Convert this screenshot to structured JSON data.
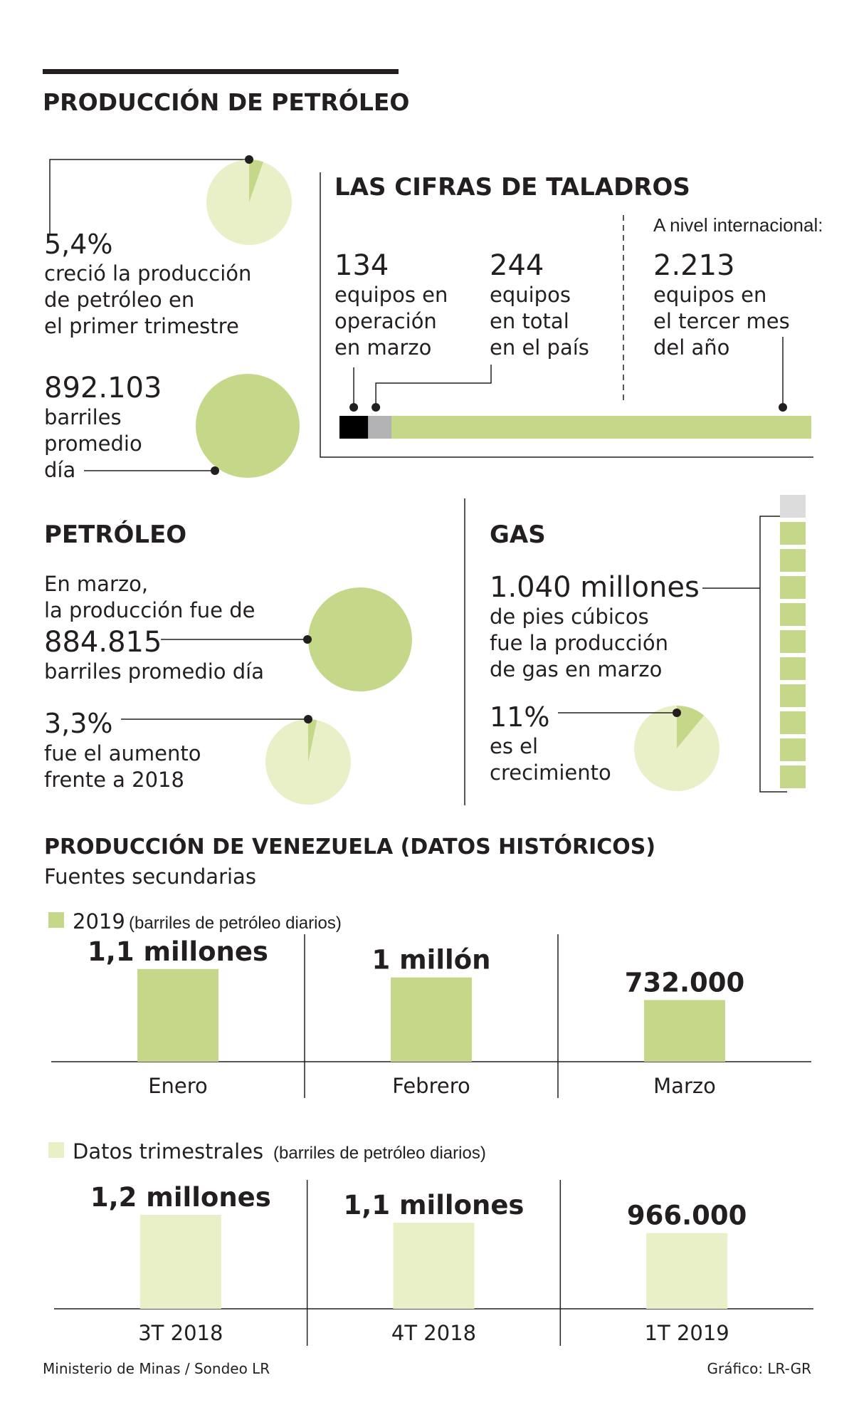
{
  "colors": {
    "green": "#c5d88a",
    "light_green": "#e9f0c8",
    "dark": "#231f20",
    "gray": "#b3b2b5",
    "lightgray": "#dcdcdd",
    "black": "#000000"
  },
  "header": {
    "title": "PRODUCCIÓN DE PETRÓLEO"
  },
  "growth": {
    "value": "5,4%",
    "lines": [
      "creció la producción",
      "de petróleo en",
      "el primer trimestre"
    ],
    "pie_fraction": 0.054
  },
  "barrels": {
    "value": "892.103",
    "lines": [
      "barriles",
      "promedio",
      "día"
    ]
  },
  "drills": {
    "title": "LAS CIFRAS DE TALADROS",
    "international_label": "A nivel internacional:",
    "items": [
      {
        "value": "134",
        "lines": [
          "equipos en",
          "operación",
          "en marzo"
        ],
        "count": 134
      },
      {
        "value": "244",
        "lines": [
          "equipos",
          "en total",
          "en el país"
        ],
        "count": 244
      },
      {
        "value": "2.213",
        "lines": [
          "equipos en",
          "el tercer mes",
          "del año"
        ],
        "count": 2213
      }
    ]
  },
  "petroleo": {
    "title": "PETRÓLEO",
    "intro": [
      "En marzo,",
      "la producción fue de"
    ],
    "value": "884.815",
    "unit": "barriles promedio día",
    "increase": "3,3%",
    "increase_lines": [
      "fue el aumento",
      "frente a 2018"
    ],
    "pie_fraction": 0.033
  },
  "gas": {
    "title": "GAS",
    "value": "1.040 millones",
    "lines": [
      "de pies cúbicos",
      "fue la producción",
      "de gas en marzo"
    ],
    "growth": "11%",
    "growth_lines": [
      "es el",
      "crecimiento"
    ],
    "pie_fraction": 0.11,
    "stack": {
      "total_blocks": 11,
      "filled_blocks": 10
    }
  },
  "chart_data": [
    {
      "type": "bar",
      "title": "PRODUCCIÓN DE VENEZUELA (DATOS HISTÓRICOS)",
      "subtitle": "Fuentes secundarias",
      "legend": "2019",
      "legend_note": "(barriles de petróleo diarios)",
      "categories": [
        "Enero",
        "Febrero",
        "Marzo"
      ],
      "values": [
        1100000,
        1000000,
        732000
      ],
      "labels": [
        "1,1 millones",
        "1 millón",
        "732.000"
      ],
      "color": "#c5d88a"
    },
    {
      "type": "bar",
      "legend": "Datos trimestrales",
      "legend_note": "(barriles de petróleo diarios)",
      "categories": [
        "3T 2018",
        "4T 2018",
        "1T 2019"
      ],
      "values": [
        1200000,
        1100000,
        966000
      ],
      "labels": [
        "1,2 millones",
        "1,1 millones",
        "966.000"
      ],
      "color": "#e9f0c8"
    }
  ],
  "footer": {
    "source": "Ministerio de Minas / Sondeo LR",
    "credit": "Gráfico: LR-GR"
  }
}
